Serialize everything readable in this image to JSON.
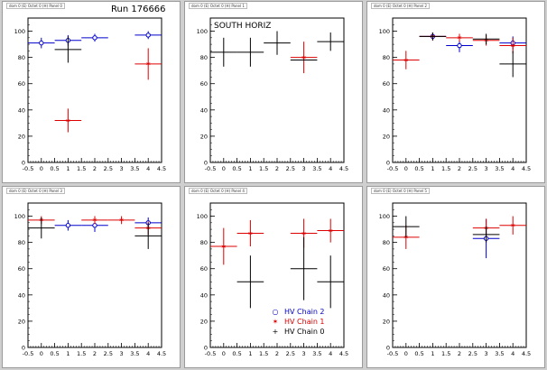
{
  "run_label": "Run 176666",
  "colors": {
    "chain2": "#0000cc",
    "chain1": "#dd0000",
    "chain0": "#000000"
  },
  "legend": [
    {
      "label": "HV Chain 2",
      "symbol": "o",
      "color": "#0000cc"
    },
    {
      "label": "HV Chain 1",
      "symbol": "*",
      "color": "#dd0000"
    },
    {
      "label": "HV Chain 0",
      "symbol": "+",
      "color": "#000000"
    }
  ],
  "panels": [
    {
      "title": "dom 0 (E) Octet 0 (H) Panel 0"
    },
    {
      "title": "dom 0 (E) Octet 0 (H) Panel 1",
      "annotation": "SOUTH HORIZ"
    },
    {
      "title": "dom 0 (E) Octet 0 (H) Panel 2"
    },
    {
      "title": "dom 0 (E) Octet 0 (H) Panel 3"
    },
    {
      "title": "dom 0 (E) Octet 0 (H) Panel 4"
    },
    {
      "title": "dom 0 (E) Octet 0 (H) Panel 5"
    }
  ],
  "chart_data": [
    {
      "type": "scatter",
      "xlim": [
        -0.5,
        4.5
      ],
      "ylim": [
        0,
        110
      ],
      "xticks": [
        "-0.5",
        "0",
        "0.5",
        "1",
        "1.5",
        "2",
        "2.5",
        "3",
        "3.5",
        "4",
        "4.5"
      ],
      "yticks": [
        "0",
        "20",
        "40",
        "60",
        "80",
        "100"
      ],
      "series": [
        {
          "name": "HV Chain 2",
          "marker": "circle",
          "color": "#0000cc",
          "points": [
            {
              "x": 0,
              "y": 91,
              "ex": 0.5,
              "ey": 4
            },
            {
              "x": 1,
              "y": 93,
              "ex": 0.5,
              "ey": 4
            },
            {
              "x": 2,
              "y": 95,
              "ex": 0.5,
              "ey": 3
            },
            {
              "x": 4,
              "y": 97,
              "ex": 0.5,
              "ey": 3
            }
          ]
        },
        {
          "name": "HV Chain 1",
          "marker": "star",
          "color": "#dd0000",
          "points": [
            {
              "x": 1,
              "y": 32,
              "ex": 0.5,
              "ey": 9
            },
            {
              "x": 4,
              "y": 75,
              "ex": 0.5,
              "ey": 12
            }
          ]
        },
        {
          "name": "HV Chain 0",
          "marker": "plus",
          "color": "#000000",
          "points": [
            {
              "x": 1,
              "y": 86,
              "ex": 0.5,
              "ey": 10
            }
          ]
        }
      ]
    },
    {
      "type": "scatter",
      "xlim": [
        -0.5,
        4.5
      ],
      "ylim": [
        0,
        110
      ],
      "xticks": [
        "-0.5",
        "0",
        "0.5",
        "1",
        "1.5",
        "2",
        "2.5",
        "3",
        "3.5",
        "4",
        "4.5"
      ],
      "yticks": [
        "0",
        "20",
        "40",
        "60",
        "80",
        "100"
      ],
      "series": [
        {
          "name": "HV Chain 1",
          "marker": "star",
          "color": "#dd0000",
          "points": [
            {
              "x": 3,
              "y": 80,
              "ex": 0.5,
              "ey": 12
            }
          ]
        },
        {
          "name": "HV Chain 0",
          "marker": "plus",
          "color": "#000000",
          "points": [
            {
              "x": 0,
              "y": 84,
              "ex": 0.5,
              "ey": 11
            },
            {
              "x": 1,
              "y": 84,
              "ex": 0.5,
              "ey": 11
            },
            {
              "x": 2,
              "y": 91,
              "ex": 0.5,
              "ey": 9
            },
            {
              "x": 3,
              "y": 78,
              "ex": 0.5,
              "ey": 0
            },
            {
              "x": 4,
              "y": 92,
              "ex": 0.5,
              "ey": 7
            }
          ]
        }
      ]
    },
    {
      "type": "scatter",
      "xlim": [
        -0.5,
        4.5
      ],
      "ylim": [
        0,
        110
      ],
      "xticks": [
        "-0.5",
        "0",
        "0.5",
        "1",
        "1.5",
        "2",
        "2.5",
        "3",
        "3.5",
        "4",
        "4.5"
      ],
      "yticks": [
        "0",
        "20",
        "40",
        "60",
        "80",
        "100"
      ],
      "series": [
        {
          "name": "HV Chain 2",
          "marker": "circle",
          "color": "#0000cc",
          "points": [
            {
              "x": 1,
              "y": 96,
              "ex": 0.5,
              "ey": 3
            },
            {
              "x": 2,
              "y": 89,
              "ex": 0.5,
              "ey": 5
            },
            {
              "x": 4,
              "y": 91,
              "ex": 0.5,
              "ey": 5
            }
          ]
        },
        {
          "name": "HV Chain 1",
          "marker": "star",
          "color": "#dd0000",
          "points": [
            {
              "x": 0,
              "y": 78,
              "ex": 0.5,
              "ey": 7
            },
            {
              "x": 1,
              "y": 96,
              "ex": 0.5,
              "ey": 3
            },
            {
              "x": 2,
              "y": 95,
              "ex": 0.5,
              "ey": 3
            },
            {
              "x": 3,
              "y": 93,
              "ex": 0.5,
              "ey": 4
            },
            {
              "x": 4,
              "y": 89,
              "ex": 0.5,
              "ey": 6
            }
          ]
        },
        {
          "name": "HV Chain 0",
          "marker": "plus",
          "color": "#000000",
          "points": [
            {
              "x": 1,
              "y": 96,
              "ex": 0.5,
              "ey": 3
            },
            {
              "x": 3,
              "y": 94,
              "ex": 0.5,
              "ey": 4
            },
            {
              "x": 4,
              "y": 75,
              "ex": 0.5,
              "ey": 10
            }
          ]
        }
      ]
    },
    {
      "type": "scatter",
      "xlim": [
        -0.5,
        4.5
      ],
      "ylim": [
        0,
        110
      ],
      "xticks": [
        "-0.5",
        "0",
        "0.5",
        "1",
        "1.5",
        "2",
        "2.5",
        "3",
        "3.5",
        "4",
        "4.5"
      ],
      "yticks": [
        "0",
        "20",
        "40",
        "60",
        "80",
        "100"
      ],
      "series": [
        {
          "name": "HV Chain 2",
          "marker": "circle",
          "color": "#0000cc",
          "points": [
            {
              "x": 1,
              "y": 93,
              "ex": 0.5,
              "ey": 4
            },
            {
              "x": 2,
              "y": 93,
              "ex": 0.5,
              "ey": 5
            },
            {
              "x": 4,
              "y": 95,
              "ex": 0.5,
              "ey": 4
            }
          ]
        },
        {
          "name": "HV Chain 1",
          "marker": "star",
          "color": "#dd0000",
          "points": [
            {
              "x": 0,
              "y": 97,
              "ex": 0.5,
              "ey": 3
            },
            {
              "x": 2,
              "y": 97,
              "ex": 0.5,
              "ey": 3
            },
            {
              "x": 3,
              "y": 97,
              "ex": 0.5,
              "ey": 3
            },
            {
              "x": 4,
              "y": 91,
              "ex": 0.5,
              "ey": 5
            }
          ]
        },
        {
          "name": "HV Chain 0",
          "marker": "plus",
          "color": "#000000",
          "points": [
            {
              "x": 0,
              "y": 91,
              "ex": 0.5,
              "ey": 8
            },
            {
              "x": 4,
              "y": 85,
              "ex": 0.5,
              "ey": 10
            }
          ]
        }
      ]
    },
    {
      "type": "scatter",
      "xlim": [
        -0.5,
        4.5
      ],
      "ylim": [
        0,
        110
      ],
      "xticks": [
        "-0.5",
        "0",
        "0.5",
        "1",
        "1.5",
        "2",
        "2.5",
        "3",
        "3.5",
        "4",
        "4.5"
      ],
      "yticks": [
        "0",
        "20",
        "40",
        "60",
        "80",
        "100"
      ],
      "series": [
        {
          "name": "HV Chain 1",
          "marker": "star",
          "color": "#dd0000",
          "points": [
            {
              "x": 0,
              "y": 77,
              "ex": 0.5,
              "ey": 14
            },
            {
              "x": 1,
              "y": 87,
              "ex": 0.5,
              "ey": 10
            },
            {
              "x": 3,
              "y": 87,
              "ex": 0.5,
              "ey": 11
            },
            {
              "x": 4,
              "y": 89,
              "ex": 0.5,
              "ey": 9
            }
          ]
        },
        {
          "name": "HV Chain 0",
          "marker": "plus",
          "color": "#000000",
          "points": [
            {
              "x": 1,
              "y": 50,
              "ex": 0.5,
              "ey": 20
            },
            {
              "x": 3,
              "y": 60,
              "ex": 0.5,
              "ey": 24
            },
            {
              "x": 4,
              "y": 50,
              "ex": 0.5,
              "ey": 20
            }
          ]
        }
      ]
    },
    {
      "type": "scatter",
      "xlim": [
        -0.5,
        4.5
      ],
      "ylim": [
        0,
        110
      ],
      "xticks": [
        "-0.5",
        "0",
        "0.5",
        "1",
        "1.5",
        "2",
        "2.5",
        "3",
        "3.5",
        "4",
        "4.5"
      ],
      "yticks": [
        "0",
        "20",
        "40",
        "60",
        "80",
        "100"
      ],
      "series": [
        {
          "name": "HV Chain 2",
          "marker": "circle",
          "color": "#0000cc",
          "points": [
            {
              "x": 3,
              "y": 83,
              "ex": 0.5,
              "ey": 15
            }
          ]
        },
        {
          "name": "HV Chain 1",
          "marker": "star",
          "color": "#dd0000",
          "points": [
            {
              "x": 0,
              "y": 84,
              "ex": 0.5,
              "ey": 9
            },
            {
              "x": 3,
              "y": 91,
              "ex": 0.5,
              "ey": 7
            },
            {
              "x": 4,
              "y": 93,
              "ex": 0.5,
              "ey": 7
            }
          ]
        },
        {
          "name": "HV Chain 0",
          "marker": "plus",
          "color": "#000000",
          "points": [
            {
              "x": 0,
              "y": 92,
              "ex": 0.5,
              "ey": 8
            },
            {
              "x": 3,
              "y": 86,
              "ex": 0.5,
              "ey": 6
            }
          ]
        }
      ]
    }
  ]
}
